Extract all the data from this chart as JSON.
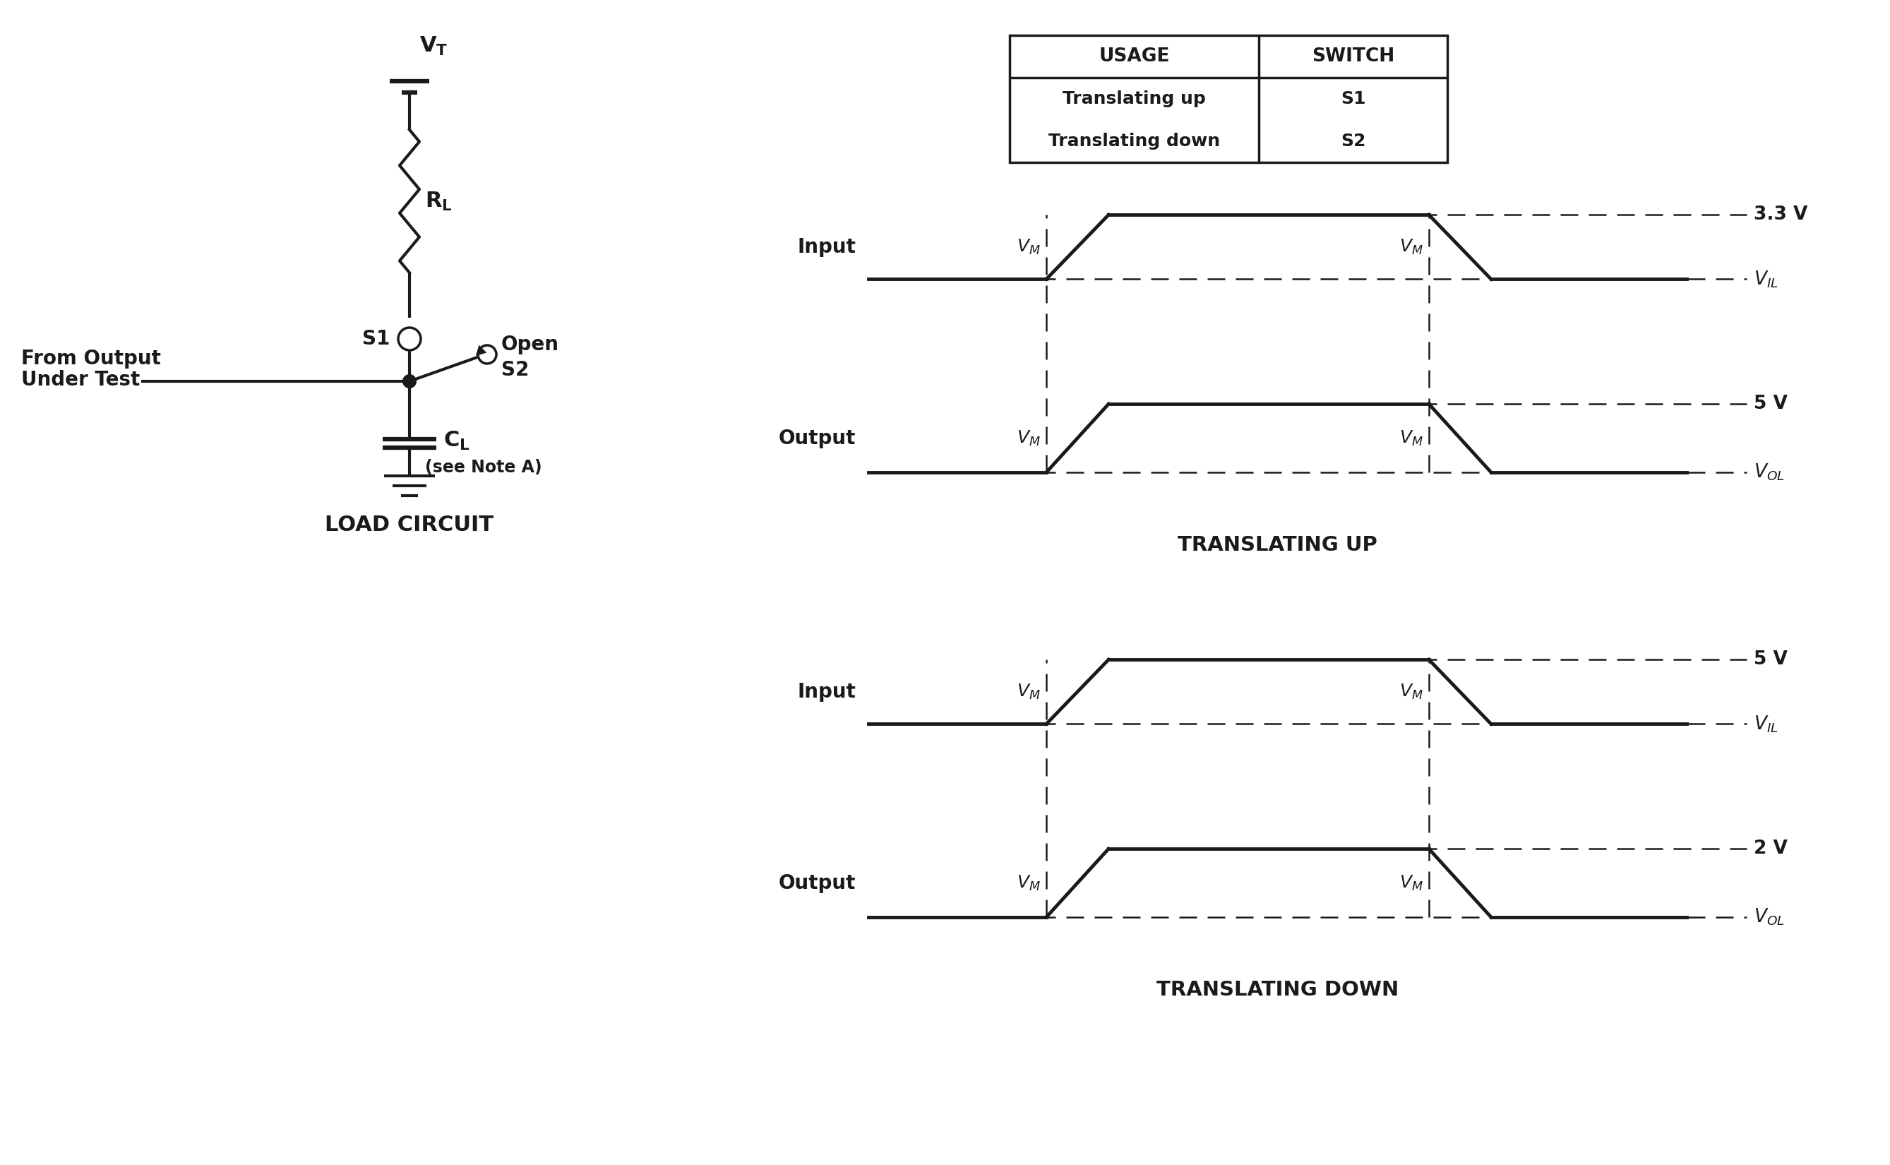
{
  "bg_color": "#ffffff",
  "line_color": "#1a1a1a",
  "font_color": "#1a1a1a",
  "table": {
    "rows": [
      [
        "Translating up",
        "S1"
      ],
      [
        "Translating down",
        "S2"
      ]
    ]
  },
  "up_waveform": {
    "title": "TRANSLATING UP",
    "top_label": "3.3 V",
    "mid_label": "5 V"
  },
  "down_waveform": {
    "title": "TRANSLATING DOWN",
    "top_label": "5 V",
    "mid_label": "2 V"
  }
}
